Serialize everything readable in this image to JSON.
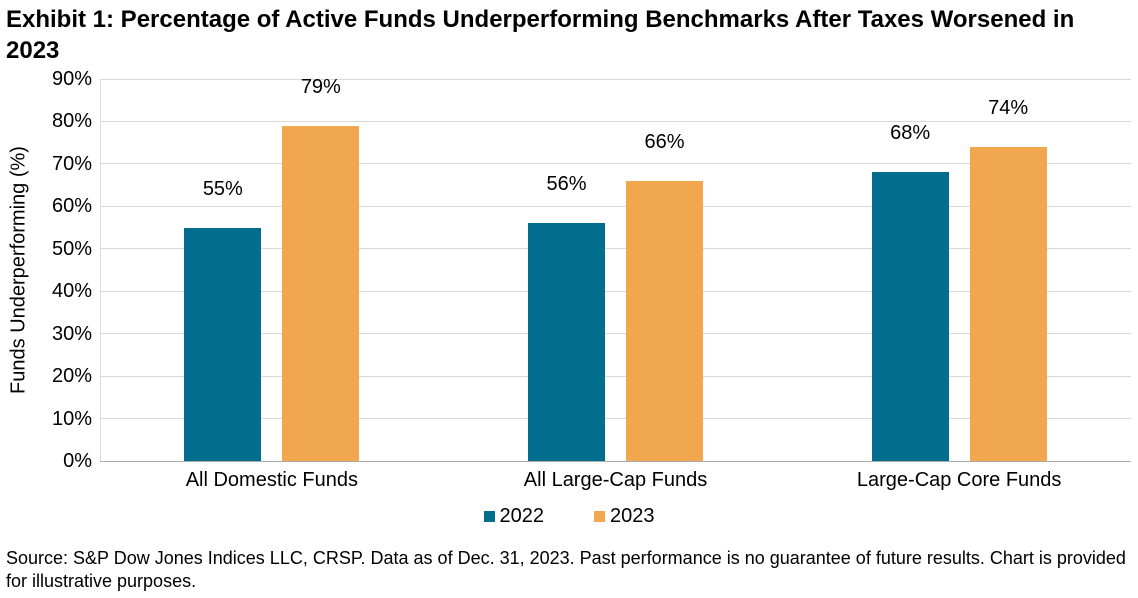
{
  "chart_data": {
    "type": "bar",
    "title": "Exhibit 1: Percentage of Active Funds Underperforming Benchmarks After Taxes Worsened in 2023",
    "categories": [
      "All Domestic Funds",
      "All Large-Cap Funds",
      "Large-Cap Core Funds"
    ],
    "series": [
      {
        "name": "2022",
        "color": "#006e8c",
        "values": [
          55,
          56,
          68
        ],
        "labels": [
          "55%",
          "56%",
          "68%"
        ]
      },
      {
        "name": "2023",
        "color": "#f0a74d",
        "values": [
          79,
          66,
          74
        ],
        "labels": [
          "79%",
          "66%",
          "74%"
        ]
      }
    ],
    "ylabel": "Funds Underperforming (%)",
    "xlabel": "",
    "ylim": [
      0,
      90
    ],
    "ytick_step": 10,
    "ytick_labels": [
      "0%",
      "10%",
      "20%",
      "30%",
      "40%",
      "50%",
      "60%",
      "70%",
      "80%",
      "90%"
    ],
    "grid": true,
    "legend_position": "bottom"
  },
  "footer": {
    "source_note": "Source: S&P Dow Jones Indices LLC, CRSP. Data as of Dec. 31, 2023. Past performance is no guarantee of future results. Chart is provided for illustrative purposes."
  }
}
